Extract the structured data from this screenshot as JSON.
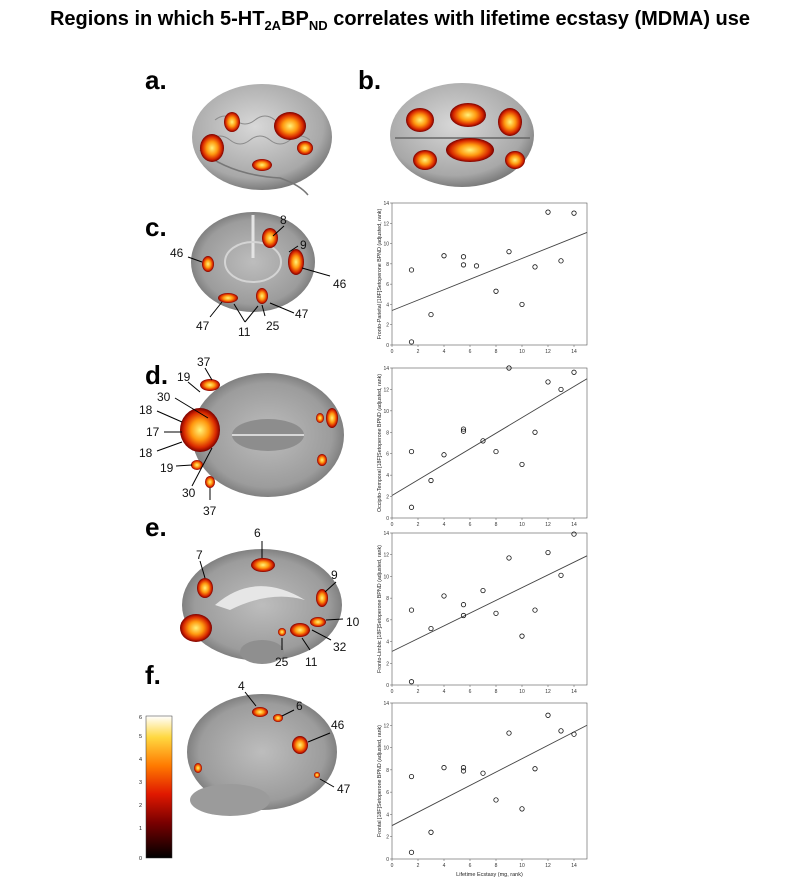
{
  "title": {
    "prefix": "Regions in which 5-HT",
    "sub1": "2A",
    "mid": "BP",
    "sub2": "ND",
    "suffix": " correlates with lifetime ecstasy (MDMA) use"
  },
  "panel_labels": {
    "a": "a.",
    "b": "b.",
    "c": "c.",
    "d": "d.",
    "e": "e.",
    "f": "f."
  },
  "brain_annotations": {
    "c": [
      "8",
      "9",
      "46",
      "46",
      "47",
      "11",
      "25",
      "47"
    ],
    "d": [
      "37",
      "19",
      "18",
      "30",
      "17",
      "18",
      "19",
      "30",
      "37"
    ],
    "e": [
      "6",
      "7",
      "9",
      "10",
      "32",
      "11",
      "25"
    ],
    "f": [
      "4",
      "6",
      "46",
      "47"
    ]
  },
  "colorbar": {
    "ticks": [
      "0",
      "1",
      "2",
      "3",
      "4",
      "5",
      "6"
    ]
  },
  "colors": {
    "hot_low": "#5a0000",
    "hot_mid": "#e23a00",
    "hot_high": "#ffe060",
    "axis": "#333333"
  },
  "chart_data": [
    {
      "type": "scatter",
      "ylabel": "Fronto-Parietal [18F]Setoperone BPND (adjusted, rank)",
      "xlabel": "",
      "xlim": [
        0,
        15
      ],
      "ylim": [
        0,
        14
      ],
      "x_ticks": [
        "0",
        "2",
        "4",
        "6",
        "8",
        "10",
        "12",
        "14"
      ],
      "y_ticks": [
        "0",
        "2",
        "4",
        "6",
        "8",
        "10",
        "12",
        "14"
      ],
      "points": [
        [
          1.5,
          0.3
        ],
        [
          1.5,
          7.4
        ],
        [
          3,
          3
        ],
        [
          4,
          8.8
        ],
        [
          5.5,
          8.7
        ],
        [
          5.5,
          7.9
        ],
        [
          6.5,
          7.8
        ],
        [
          8,
          5.3
        ],
        [
          9,
          9.2
        ],
        [
          10,
          4
        ],
        [
          11,
          7.7
        ],
        [
          12,
          13.1
        ],
        [
          13,
          8.3
        ],
        [
          14,
          13
        ]
      ],
      "fit": [
        [
          0,
          3.4
        ],
        [
          15,
          11.1
        ]
      ]
    },
    {
      "type": "scatter",
      "ylabel": "Occipito-Temporal [18F]Setoperone BPND (adjusted, rank)",
      "xlabel": "",
      "xlim": [
        0,
        15
      ],
      "ylim": [
        0,
        14
      ],
      "x_ticks": [
        "0",
        "2",
        "4",
        "6",
        "8",
        "10",
        "12",
        "14"
      ],
      "y_ticks": [
        "0",
        "2",
        "4",
        "6",
        "8",
        "10",
        "12",
        "14"
      ],
      "points": [
        [
          1.5,
          1
        ],
        [
          1.5,
          6.2
        ],
        [
          3,
          3.5
        ],
        [
          4,
          5.9
        ],
        [
          5.5,
          8.1
        ],
        [
          5.5,
          8.3
        ],
        [
          7,
          7.2
        ],
        [
          8,
          6.2
        ],
        [
          9,
          14
        ],
        [
          10,
          5
        ],
        [
          11,
          8
        ],
        [
          12,
          12.7
        ],
        [
          13,
          12
        ],
        [
          14,
          13.6
        ]
      ],
      "fit": [
        [
          0,
          2.1
        ],
        [
          15,
          13
        ]
      ]
    },
    {
      "type": "scatter",
      "ylabel": "Fronto-Limbic [18F]Setoperone BPND (adjusted, rank)",
      "xlabel": "",
      "xlim": [
        0,
        15
      ],
      "ylim": [
        0,
        14
      ],
      "x_ticks": [
        "0",
        "2",
        "4",
        "6",
        "8",
        "10",
        "12",
        "14"
      ],
      "y_ticks": [
        "0",
        "2",
        "4",
        "6",
        "8",
        "10",
        "12",
        "14"
      ],
      "points": [
        [
          1.5,
          0.3
        ],
        [
          1.5,
          6.9
        ],
        [
          3,
          5.2
        ],
        [
          4,
          8.2
        ],
        [
          5.5,
          7.4
        ],
        [
          5.5,
          6.4
        ],
        [
          7,
          8.7
        ],
        [
          8,
          6.6
        ],
        [
          9,
          11.7
        ],
        [
          10,
          4.5
        ],
        [
          11,
          6.9
        ],
        [
          12,
          12.2
        ],
        [
          13,
          10.1
        ],
        [
          14,
          13.9
        ]
      ],
      "fit": [
        [
          0,
          3.1
        ],
        [
          15,
          11.9
        ]
      ]
    },
    {
      "type": "scatter",
      "ylabel": "Frontal [18F]Setoperone BPND (adjusted, rank)",
      "xlabel": "Lifetime Ecstasy (mg, rank)",
      "xlim": [
        0,
        15
      ],
      "ylim": [
        0,
        14
      ],
      "x_ticks": [
        "0",
        "2",
        "4",
        "6",
        "8",
        "10",
        "12",
        "14"
      ],
      "y_ticks": [
        "0",
        "2",
        "4",
        "6",
        "8",
        "10",
        "12",
        "14"
      ],
      "points": [
        [
          1.5,
          0.6
        ],
        [
          1.5,
          7.4
        ],
        [
          3,
          2.4
        ],
        [
          4,
          8.2
        ],
        [
          5.5,
          7.9
        ],
        [
          5.5,
          8.2
        ],
        [
          7,
          7.7
        ],
        [
          8,
          5.3
        ],
        [
          9,
          11.3
        ],
        [
          10,
          4.5
        ],
        [
          11,
          8.1
        ],
        [
          12,
          12.9
        ],
        [
          13,
          11.5
        ],
        [
          14,
          11.2
        ]
      ],
      "fit": [
        [
          0,
          3
        ],
        [
          15,
          12
        ]
      ]
    }
  ]
}
